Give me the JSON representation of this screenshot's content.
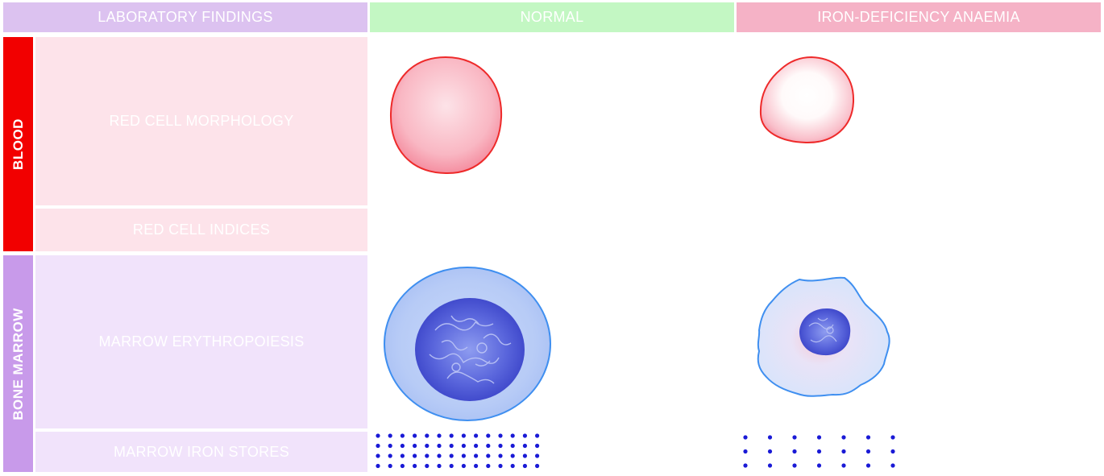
{
  "headers": {
    "laboratory_findings": "LABORATORY FINDINGS",
    "normal": "NORMAL",
    "iron_deficiency": "IRON-DEFICIENCY ANAEMIA"
  },
  "sections": {
    "blood": "BLOOD",
    "bone_marrow": "BONE MARROW"
  },
  "rows": {
    "red_cell_morphology": "RED CELL MORPHOLOGY",
    "red_cell_indices": "RED CELL INDICES",
    "marrow_erythropoiesis": "MARROW ERYTHROPOIESIS",
    "marrow_iron_stores": "MARROW IRON STORES"
  },
  "colors": {
    "lab_header": "#dcc2f0",
    "normal_header": "#c3f7c3",
    "ida_header": "#f5b2c6",
    "blood_band": "#f20000",
    "marrow_band": "#c89aea",
    "blood_rows": "#fde3ea",
    "marrow_rows": "#f1e3fb",
    "rbc_outline": "#ee2a2a",
    "erythroblast_outline": "#3f8ff0",
    "nucleus": "#3f46cf",
    "iron_dots": "#1a1ad6"
  },
  "icons": {
    "normal_rbc": "normal-red-cell-icon",
    "ida_rbc": "microcytic-hypochromic-red-cell-icon",
    "normal_erythroblast": "normal-erythroblast-icon",
    "ida_erythroblast": "ragged-micronormoblast-icon",
    "normal_iron": "abundant-iron-stores-icon",
    "ida_iron": "sparse-iron-stores-icon"
  }
}
